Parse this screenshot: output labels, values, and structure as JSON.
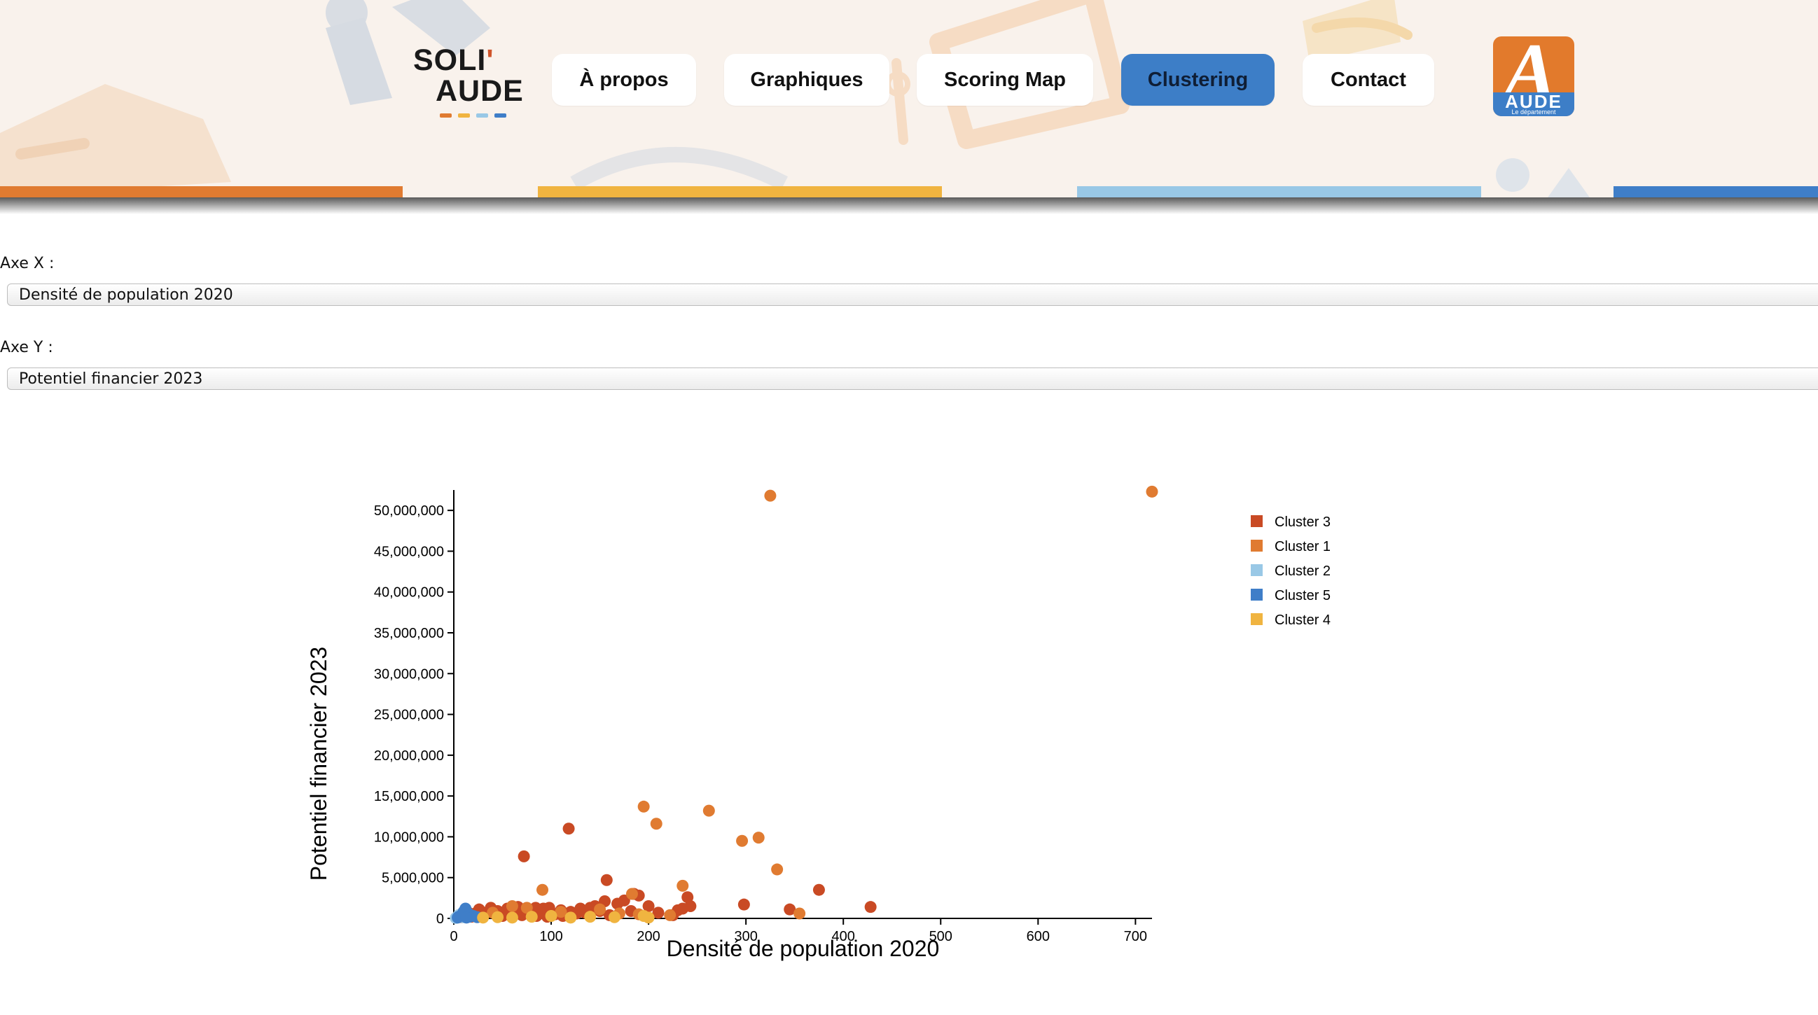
{
  "header": {
    "logo": {
      "line1": "SOLI",
      "apostrophe": "'",
      "line2": "AUDE"
    },
    "nav": [
      {
        "label": "À propos",
        "active": false
      },
      {
        "label": "Graphiques",
        "active": false
      },
      {
        "label": "Scoring Map",
        "active": false
      },
      {
        "label": "Clustering",
        "active": true
      },
      {
        "label": "Contact",
        "active": false
      }
    ],
    "partner_logo": {
      "word": "AUDE",
      "subtitle": "Le département"
    }
  },
  "colors": {
    "orange": "#e07b31",
    "yellow": "#f0b440",
    "light_blue": "#99c8e6",
    "blue": "#3f7ec8",
    "red": "#c94a24",
    "header_bg": "#f9f2ec"
  },
  "controls": {
    "x_label": "Axe X :",
    "x_value": "Densité de population 2020",
    "y_label": "Axe Y :",
    "y_value": "Potentiel financier 2023"
  },
  "chart_data": {
    "type": "scatter",
    "xlabel": "Densité de population 2020",
    "ylabel": "Potentiel financier 2023",
    "xlim": [
      0,
      717
    ],
    "ylim": [
      0,
      52500000
    ],
    "x_ticks": [
      0,
      100,
      200,
      300,
      400,
      500,
      600,
      700
    ],
    "x_tick_labels": [
      "0",
      "100",
      "200",
      "300",
      "400",
      "500",
      "600",
      "700"
    ],
    "y_ticks": [
      0,
      5000000,
      10000000,
      15000000,
      20000000,
      25000000,
      30000000,
      35000000,
      40000000,
      45000000,
      50000000
    ],
    "y_tick_labels": [
      "0",
      "5,000,000",
      "10,000,000",
      "15,000,000",
      "20,000,000",
      "25,000,000",
      "30,000,000",
      "35,000,000",
      "40,000,000",
      "45,000,000",
      "50,000,000"
    ],
    "legend_position": "top-right",
    "series": [
      {
        "name": "Cluster 3",
        "color": "#c94a24",
        "points": [
          [
            72,
            7600000
          ],
          [
            118,
            11000000
          ],
          [
            157,
            4700000
          ],
          [
            375,
            3500000
          ],
          [
            428,
            1400000
          ],
          [
            298,
            1700000
          ],
          [
            345,
            1100000
          ],
          [
            240,
            2600000
          ],
          [
            243,
            1500000
          ],
          [
            230,
            1000000
          ],
          [
            185,
            3000000
          ],
          [
            190,
            2800000
          ],
          [
            200,
            1500000
          ],
          [
            175,
            2200000
          ],
          [
            168,
            1800000
          ],
          [
            155,
            2100000
          ],
          [
            150,
            900000
          ],
          [
            140,
            1300000
          ],
          [
            130,
            1200000
          ],
          [
            120,
            800000
          ],
          [
            110,
            1000000
          ],
          [
            104,
            500000
          ],
          [
            98,
            1300000
          ],
          [
            92,
            1200000
          ],
          [
            88,
            800000
          ],
          [
            84,
            1300000
          ],
          [
            80,
            600000
          ],
          [
            76,
            1000000
          ],
          [
            70,
            400000
          ],
          [
            64,
            800000
          ],
          [
            60,
            500000
          ],
          [
            55,
            1200000
          ],
          [
            50,
            300000
          ],
          [
            45,
            900000
          ],
          [
            42,
            600000
          ],
          [
            38,
            1300000
          ],
          [
            35,
            800000
          ],
          [
            30,
            400000
          ],
          [
            26,
            1100000
          ],
          [
            22,
            600000
          ],
          [
            18,
            200000
          ],
          [
            15,
            700000
          ],
          [
            12,
            300000
          ],
          [
            10,
            500000
          ],
          [
            8,
            150000
          ],
          [
            28,
            200000
          ],
          [
            52,
            600000
          ],
          [
            66,
            1400000
          ],
          [
            96,
            200000
          ],
          [
            112,
            300000
          ],
          [
            126,
            600000
          ],
          [
            135,
            700000
          ],
          [
            145,
            1500000
          ],
          [
            160,
            400000
          ],
          [
            182,
            900000
          ],
          [
            210,
            700000
          ],
          [
            225,
            400000
          ],
          [
            235,
            1200000
          ],
          [
            58,
            900000
          ],
          [
            85,
            300000
          ]
        ]
      },
      {
        "name": "Cluster 1",
        "color": "#e07b31",
        "points": [
          [
            325,
            51800000
          ],
          [
            717,
            52300000
          ],
          [
            195,
            13700000
          ],
          [
            262,
            13200000
          ],
          [
            208,
            11600000
          ],
          [
            313,
            9900000
          ],
          [
            296,
            9500000
          ],
          [
            332,
            6000000
          ],
          [
            235,
            4000000
          ],
          [
            91,
            3500000
          ],
          [
            183,
            3000000
          ],
          [
            355,
            600000
          ],
          [
            222,
            400000
          ],
          [
            190,
            500000
          ],
          [
            40,
            700000
          ],
          [
            60,
            1500000
          ],
          [
            75,
            1300000
          ],
          [
            110,
            800000
          ],
          [
            150,
            1100000
          ],
          [
            170,
            600000
          ]
        ]
      },
      {
        "name": "Cluster 2",
        "color": "#99c8e6",
        "points": [
          [
            3,
            100000
          ],
          [
            6,
            250000
          ],
          [
            2,
            50000
          ],
          [
            9,
            150000
          ],
          [
            5,
            400000
          ]
        ]
      },
      {
        "name": "Cluster 5",
        "color": "#3f7ec8",
        "points": [
          [
            12,
            1200000
          ],
          [
            8,
            400000
          ],
          [
            15,
            600000
          ],
          [
            5,
            200000
          ],
          [
            20,
            300000
          ],
          [
            10,
            800000
          ],
          [
            4,
            100000
          ],
          [
            16,
            200000
          ],
          [
            24,
            150000
          ],
          [
            13,
            100000
          ]
        ]
      },
      {
        "name": "Cluster 4",
        "color": "#f0b440",
        "points": [
          [
            100,
            300000
          ],
          [
            140,
            200000
          ],
          [
            165,
            150000
          ],
          [
            195,
            300000
          ],
          [
            45,
            150000
          ],
          [
            120,
            100000
          ],
          [
            80,
            200000
          ],
          [
            30,
            100000
          ],
          [
            200,
            100000
          ],
          [
            60,
            100000
          ]
        ]
      }
    ]
  }
}
